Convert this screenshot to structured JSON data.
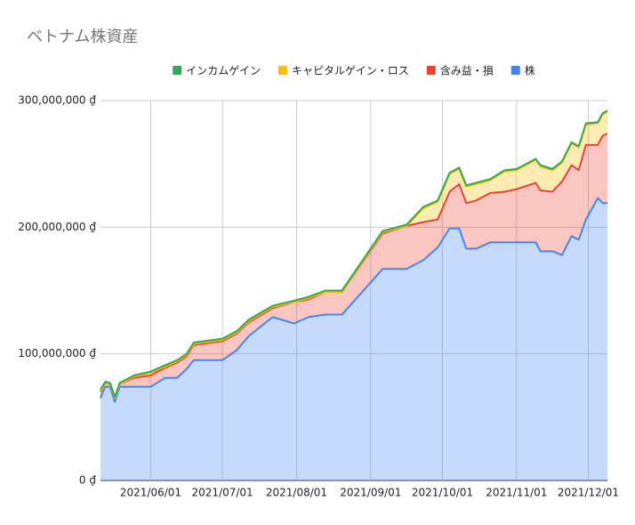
{
  "chart_data": {
    "type": "stacked_area",
    "title": "ベトナム株資産",
    "x": [
      "2021-05-11",
      "2021-05-12",
      "2021-05-13",
      "2021-05-15",
      "2021-05-17",
      "2021-05-19",
      "2021-05-25",
      "2021-06-01",
      "2021-06-07",
      "2021-06-12",
      "2021-06-16",
      "2021-06-19",
      "2021-07-01",
      "2021-07-07",
      "2021-07-12",
      "2021-07-22",
      "2021-07-31",
      "2021-08-06",
      "2021-08-13",
      "2021-08-20",
      "2021-09-06",
      "2021-09-16",
      "2021-09-23",
      "2021-09-29",
      "2021-10-04",
      "2021-10-08",
      "2021-10-11",
      "2021-10-15",
      "2021-10-21",
      "2021-10-27",
      "2021-11-01",
      "2021-11-09",
      "2021-11-11",
      "2021-11-16",
      "2021-11-20",
      "2021-11-24",
      "2021-11-27",
      "2021-11-30",
      "2021-12-05",
      "2021-12-07",
      "2021-12-09"
    ],
    "series": [
      {
        "name": "インカムゲイン",
        "color": "#34a853",
        "values": [
          1000000,
          1000000,
          1000000,
          1000000,
          1000000,
          1000000,
          1000000,
          1000000,
          1000000,
          1000000,
          1000000,
          1000000,
          1000000,
          1000000,
          1000000,
          1000000,
          1000000,
          1000000,
          1000000,
          1000000,
          1000000,
          1000000,
          1000000,
          1000000,
          1000000,
          1000000,
          1000000,
          1000000,
          1000000,
          1000000,
          1000000,
          1000000,
          1000000,
          1000000,
          1000000,
          1000000,
          1000000,
          1000000,
          1000000,
          1000000,
          1000000
        ]
      },
      {
        "name": "キャピタルゲイン・ロス",
        "color": "#fbbc04",
        "values": [
          1000000,
          0,
          0,
          0,
          0,
          0,
          1000000,
          2000000,
          1000000,
          1000000,
          1000000,
          1000000,
          1000000,
          1000000,
          1000000,
          1000000,
          0,
          1000000,
          0,
          0,
          1000000,
          0,
          11000000,
          14000000,
          14000000,
          12000000,
          13000000,
          13000000,
          10000000,
          16000000,
          15000000,
          18000000,
          19000000,
          17000000,
          15000000,
          17000000,
          18000000,
          16000000,
          17000000,
          17000000,
          17000000
        ]
      },
      {
        "name": "含み益・損",
        "color": "#ea4335",
        "values": [
          5000000,
          4000000,
          3000000,
          2000000,
          3000000,
          2000000,
          7000000,
          9000000,
          8000000,
          12000000,
          10000000,
          12000000,
          15000000,
          13000000,
          11000000,
          7000000,
          17000000,
          14000000,
          18000000,
          18000000,
          28000000,
          34000000,
          30000000,
          22000000,
          29000000,
          35000000,
          36000000,
          38000000,
          39000000,
          40000000,
          42000000,
          47000000,
          48000000,
          47000000,
          58000000,
          56000000,
          55000000,
          59000000,
          42000000,
          53000000,
          55000000
        ]
      },
      {
        "name": "株",
        "color": "#4285f4",
        "values": [
          65000000,
          70000000,
          74000000,
          74000000,
          62000000,
          74000000,
          74000000,
          74000000,
          81000000,
          81000000,
          88000000,
          95000000,
          95000000,
          103000000,
          114000000,
          129000000,
          124000000,
          129000000,
          131000000,
          131000000,
          167000000,
          167000000,
          174000000,
          184000000,
          199000000,
          199000000,
          183000000,
          183000000,
          188000000,
          188000000,
          188000000,
          188000000,
          181000000,
          181000000,
          178000000,
          193000000,
          190000000,
          206000000,
          223000000,
          219000000,
          219000000
        ]
      }
    ],
    "xlim": [
      "2021-05-11",
      "2021-12-09"
    ],
    "xticks": [
      {
        "value": "2021-06-01",
        "label": "2021/06/01"
      },
      {
        "value": "2021-07-01",
        "label": "2021/07/01"
      },
      {
        "value": "2021-08-01",
        "label": "2021/08/01"
      },
      {
        "value": "2021-09-01",
        "label": "2021/09/01"
      },
      {
        "value": "2021-10-01",
        "label": "2021/10/01"
      },
      {
        "value": "2021-11-01",
        "label": "2021/11/01"
      },
      {
        "value": "2021-12-01",
        "label": "2021/12/01"
      }
    ],
    "ylim": [
      0,
      300000000
    ],
    "yticks": [
      {
        "value": 0,
        "label": "0 ₫"
      },
      {
        "value": 100000000,
        "label": "100,000,000 ₫"
      },
      {
        "value": 200000000,
        "label": "200,000,000 ₫"
      },
      {
        "value": 300000000,
        "label": "300,000,000 ₫"
      }
    ],
    "grid": true,
    "stacked": true,
    "legend": "top"
  }
}
